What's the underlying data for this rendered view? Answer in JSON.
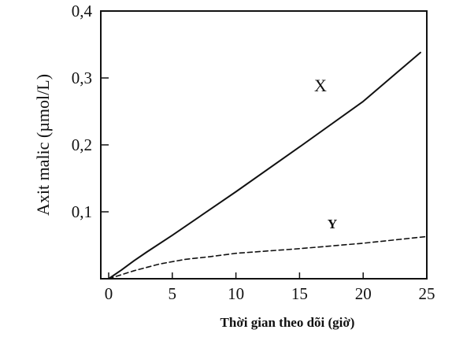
{
  "chart_data": {
    "type": "line",
    "title": "",
    "xlabel": "Thời gian theo dõi (giờ)",
    "ylabel": "Axit malic (µmol/L)",
    "xlim": [
      0,
      25
    ],
    "ylim": [
      0,
      0.4
    ],
    "xticks": [
      {
        "value": 0,
        "label": "0"
      },
      {
        "value": 5,
        "label": "5"
      },
      {
        "value": 10,
        "label": "10"
      },
      {
        "value": 15,
        "label": "15"
      },
      {
        "value": 20,
        "label": "20"
      },
      {
        "value": 25,
        "label": "25"
      }
    ],
    "yticks": [
      {
        "value": 0.1,
        "label": "0,1"
      },
      {
        "value": 0.2,
        "label": "0,2"
      },
      {
        "value": 0.3,
        "label": "0,3"
      },
      {
        "value": 0.4,
        "label": "0,4"
      }
    ],
    "grid": false,
    "legend": "none",
    "series": [
      {
        "name": "X",
        "line_style": "solid",
        "color": "#111111",
        "points": [
          [
            0,
            0.0
          ],
          [
            1,
            0.013
          ],
          [
            2,
            0.027
          ],
          [
            3,
            0.04
          ],
          [
            5,
            0.065
          ],
          [
            10,
            0.13
          ],
          [
            15,
            0.197
          ],
          [
            20,
            0.265
          ],
          [
            24.5,
            0.338
          ]
        ]
      },
      {
        "name": "Y",
        "line_style": "dashed",
        "color": "#111111",
        "points": [
          [
            0,
            0.0
          ],
          [
            2,
            0.012
          ],
          [
            4,
            0.022
          ],
          [
            6,
            0.029
          ],
          [
            8,
            0.033
          ],
          [
            10,
            0.038
          ],
          [
            15,
            0.045
          ],
          [
            20,
            0.053
          ],
          [
            25,
            0.063
          ]
        ]
      }
    ]
  }
}
